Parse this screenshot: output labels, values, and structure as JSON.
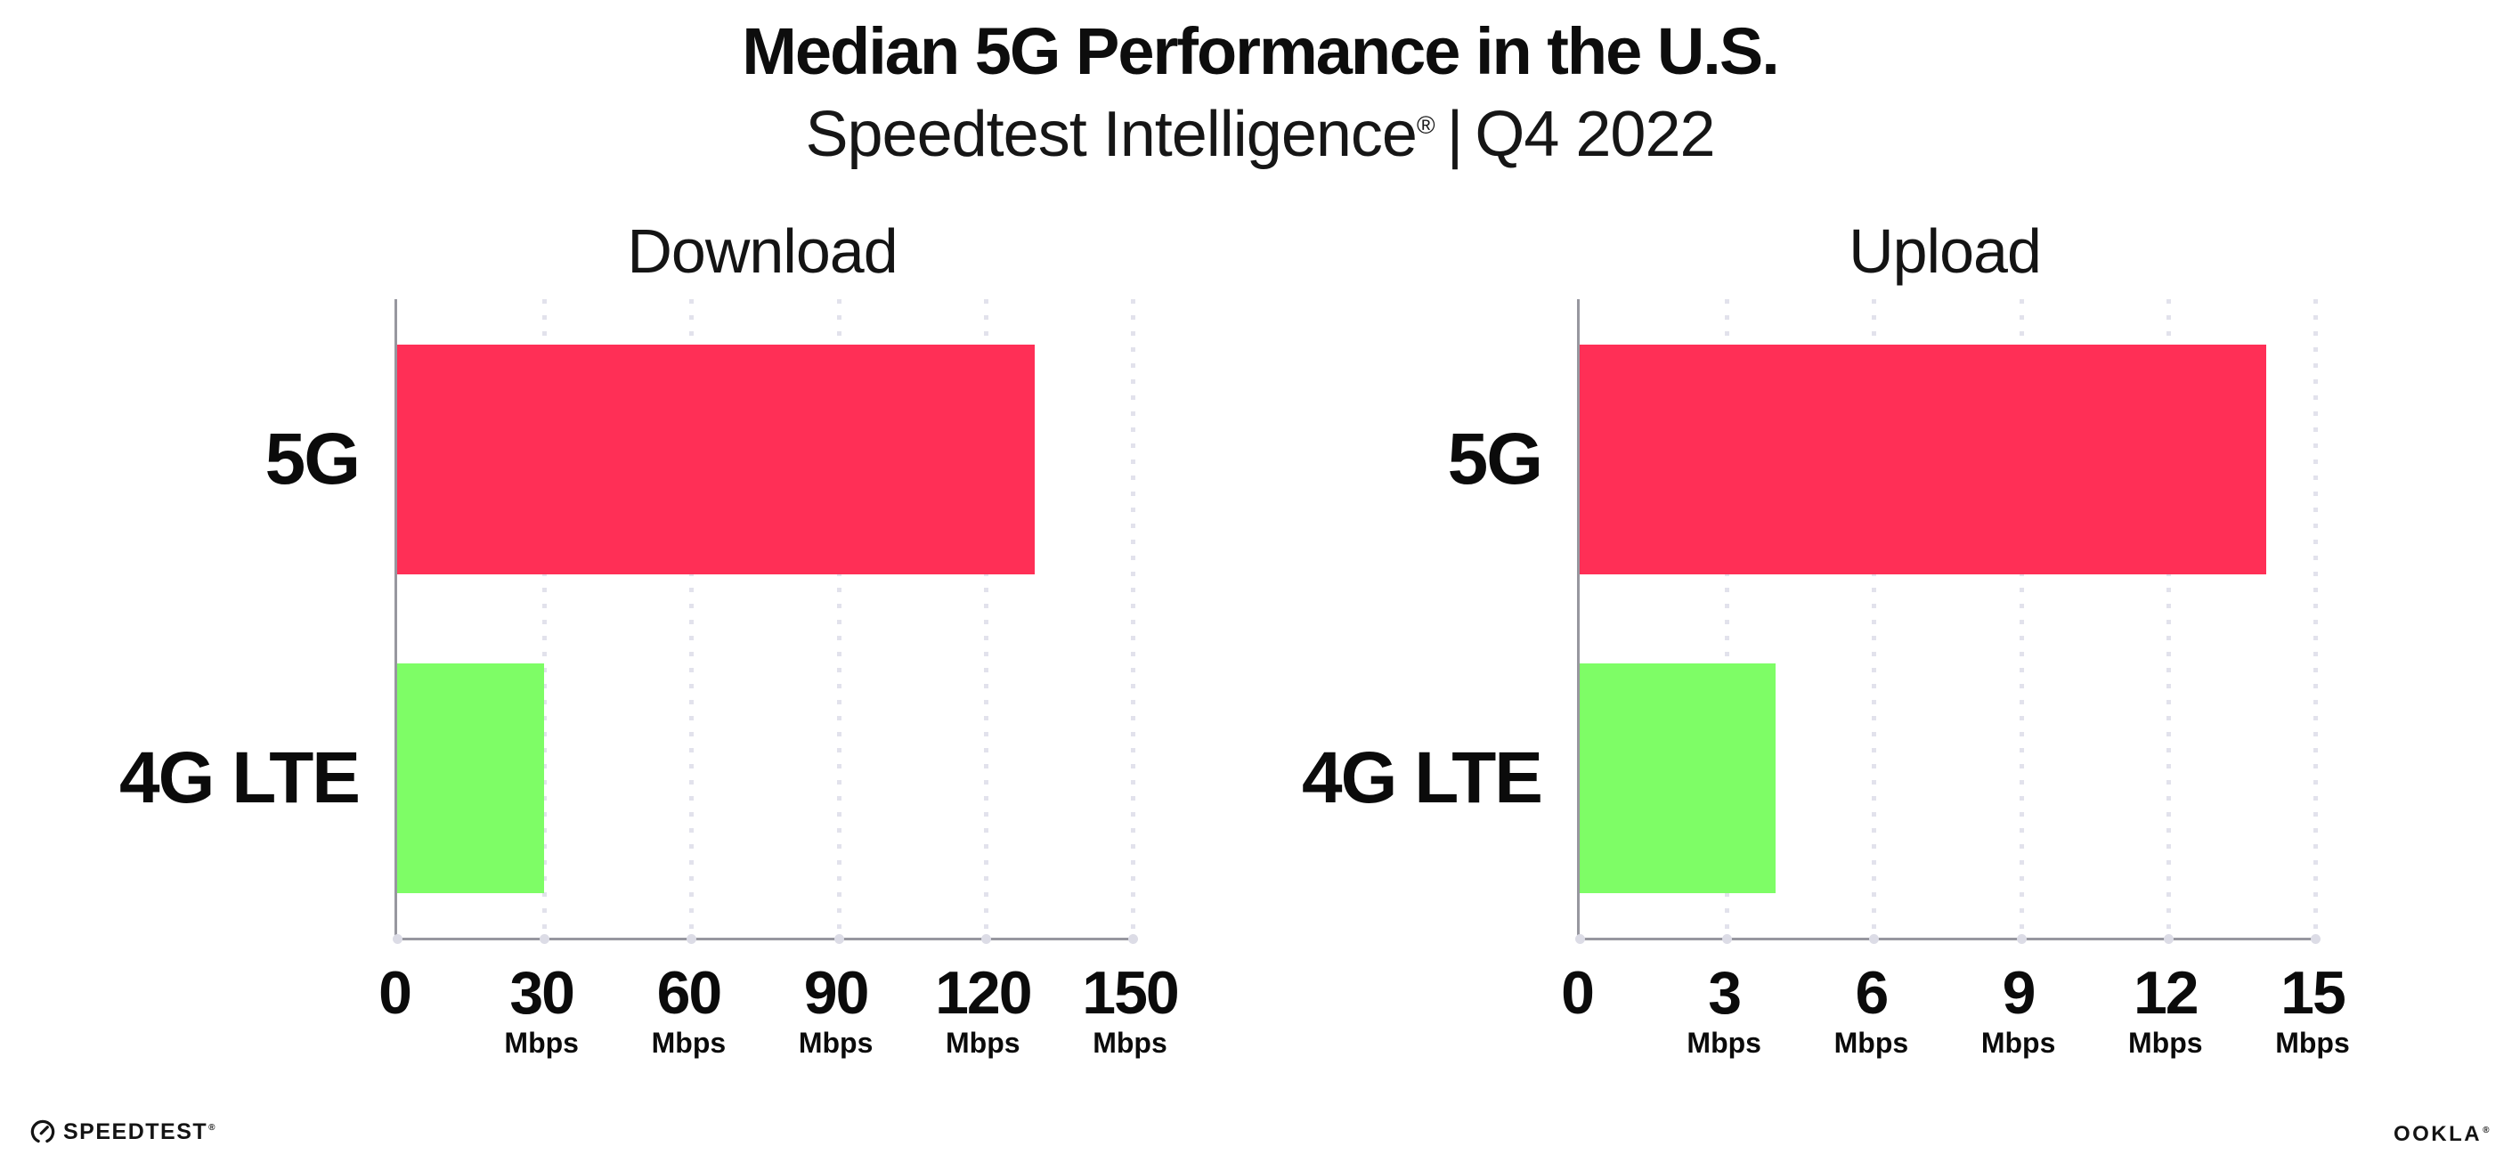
{
  "header": {
    "title": "Median 5G Performance in the U.S.",
    "subtitle_brand": "Speedtest Intelligence",
    "subtitle_reg": "®",
    "subtitle_sep": "|",
    "subtitle_period": "Q4 2022"
  },
  "chart_data": [
    {
      "type": "bar",
      "orientation": "horizontal",
      "title": "Download",
      "categories": [
        "5G",
        "4G LTE"
      ],
      "values": [
        130,
        30
      ],
      "unit": "Mbps",
      "xlim": [
        0,
        150
      ],
      "ticks": [
        0,
        30,
        60,
        90,
        120,
        150
      ],
      "tick_unit_label": "Mbps",
      "bar_colors": [
        "#FF2F56",
        "#7EFD66"
      ],
      "grid": "dotted-vertical",
      "legend": "none"
    },
    {
      "type": "bar",
      "orientation": "horizontal",
      "title": "Upload",
      "categories": [
        "5G",
        "4G LTE"
      ],
      "values": [
        14,
        4
      ],
      "unit": "Mbps",
      "xlim": [
        0,
        15
      ],
      "ticks": [
        0,
        3,
        6,
        9,
        12,
        15
      ],
      "tick_unit_label": "Mbps",
      "bar_colors": [
        "#FF2F56",
        "#7EFD66"
      ],
      "grid": "dotted-vertical",
      "legend": "none"
    }
  ],
  "style": {
    "bar_color_5g": "#FF2F56",
    "bar_color_4g_lte": "#7EFD66",
    "axis_color": "#97979f",
    "grid_color": "#e2e2ec",
    "background": "#ffffff",
    "text_color": "#101010"
  },
  "footer": {
    "speedtest_logo_text": "SPEEDTEST",
    "speedtest_trademark": "®",
    "ookla_logo_text": "OOKLA",
    "ookla_trademark": "®"
  }
}
